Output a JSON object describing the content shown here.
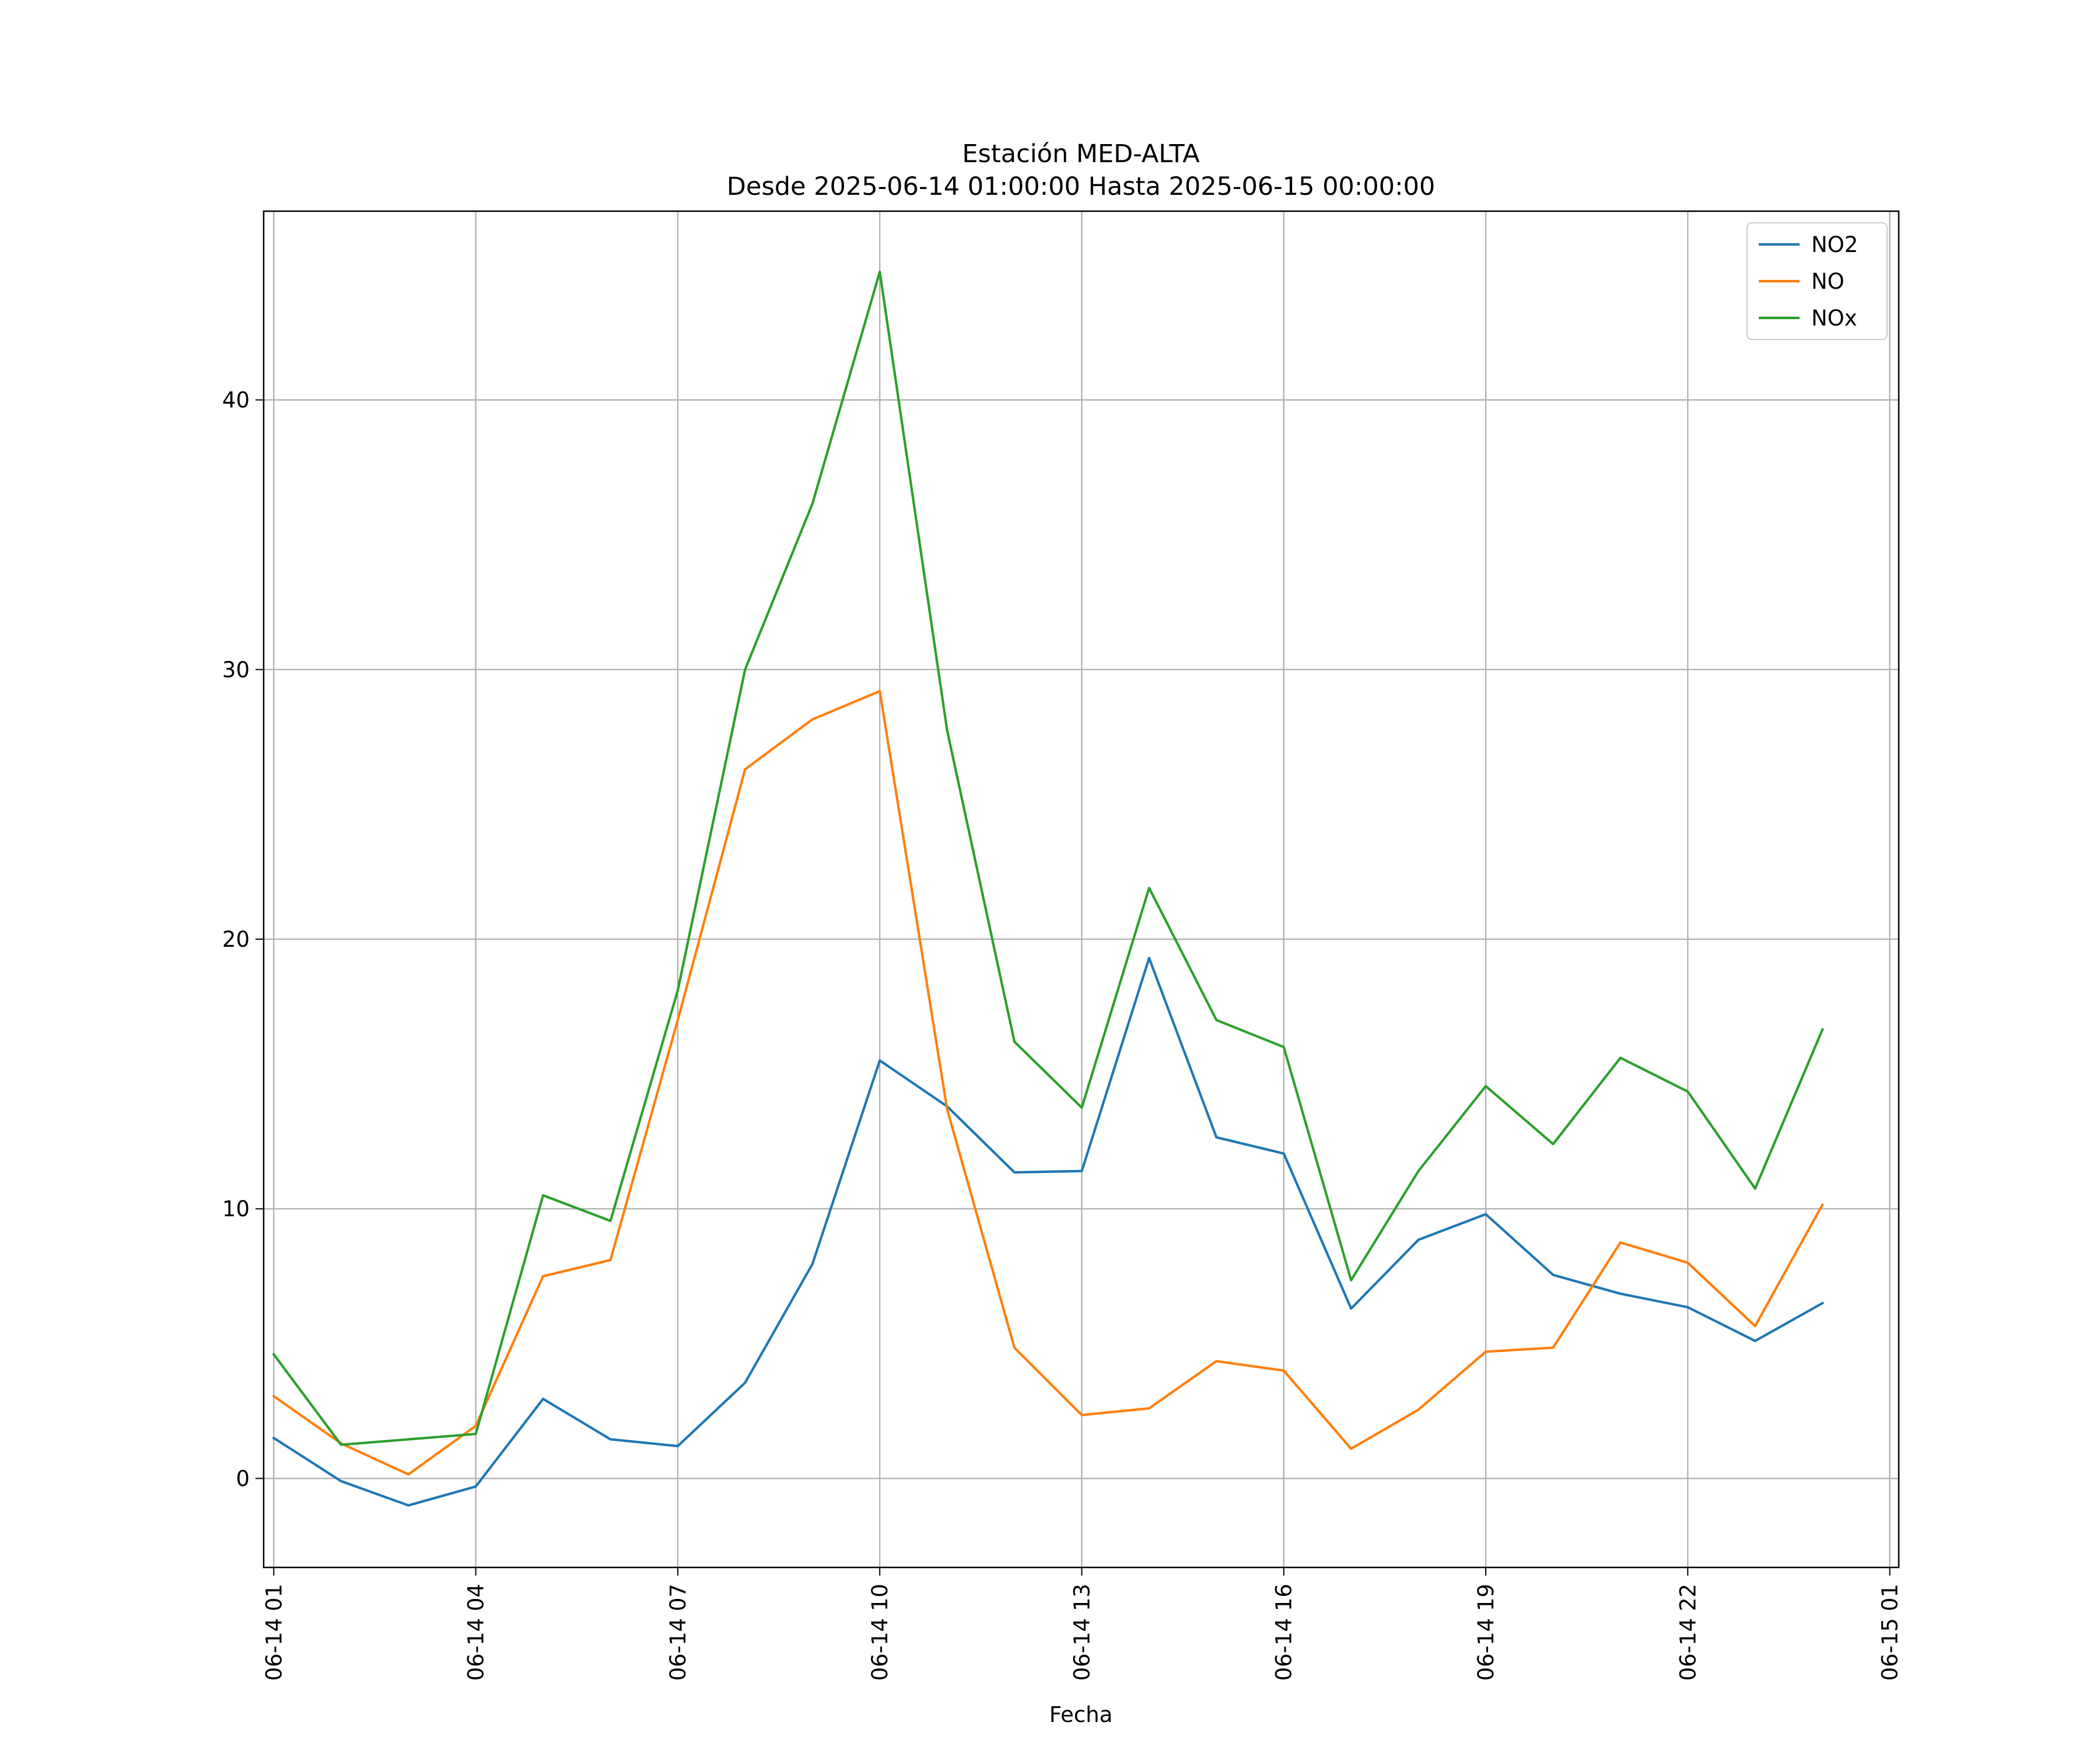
{
  "chart_data": {
    "type": "line",
    "title": "Estación MED-ALTA",
    "subtitle": "Desde 2025-06-14 01:00:00 Hasta 2025-06-15 00:00:00",
    "xlabel": "Fecha",
    "ylabel": "",
    "x": [
      "2025-06-14 01:00",
      "2025-06-14 02:00",
      "2025-06-14 03:00",
      "2025-06-14 04:00",
      "2025-06-14 05:00",
      "2025-06-14 06:00",
      "2025-06-14 07:00",
      "2025-06-14 08:00",
      "2025-06-14 09:00",
      "2025-06-14 10:00",
      "2025-06-14 11:00",
      "2025-06-14 12:00",
      "2025-06-14 13:00",
      "2025-06-14 14:00",
      "2025-06-14 15:00",
      "2025-06-14 16:00",
      "2025-06-14 17:00",
      "2025-06-14 18:00",
      "2025-06-14 19:00",
      "2025-06-14 20:00",
      "2025-06-14 21:00",
      "2025-06-14 22:00",
      "2025-06-14 23:00",
      "2025-06-15 00:00"
    ],
    "x_ticks": [
      "06-14 01",
      "06-14 04",
      "06-14 07",
      "06-14 10",
      "06-14 13",
      "06-14 16",
      "06-14 19",
      "06-14 22",
      "06-15 01"
    ],
    "y_ticks": [
      0,
      10,
      20,
      30,
      40
    ],
    "ylim": [
      -3.3,
      47.0
    ],
    "xlim": [
      "2025-06-14 00:51",
      "2025-06-15 01:08"
    ],
    "grid": true,
    "legend": "top-right",
    "series": [
      {
        "name": "NO2",
        "color": "#1f77b4",
        "values": [
          1.5,
          -0.1,
          -1.0,
          -0.3,
          2.95,
          1.45,
          1.2,
          3.55,
          7.95,
          15.5,
          13.8,
          11.35,
          11.4,
          19.3,
          12.65,
          12.05,
          6.3,
          8.85,
          9.8,
          7.55,
          6.85,
          6.35,
          5.1,
          6.5
        ]
      },
      {
        "name": "NO",
        "color": "#ff7f0e",
        "values": [
          3.05,
          1.3,
          0.15,
          1.95,
          7.5,
          8.1,
          17.0,
          26.3,
          28.15,
          29.2,
          13.7,
          4.85,
          2.35,
          2.6,
          4.35,
          4.0,
          1.1,
          2.55,
          4.7,
          4.85,
          8.75,
          8.0,
          5.65,
          10.15
        ]
      },
      {
        "name": "NOx",
        "color": "#2ca02c",
        "values": [
          4.6,
          1.25,
          null,
          1.65,
          10.5,
          9.55,
          18.1,
          30.0,
          36.15,
          44.75,
          27.75,
          16.2,
          13.75,
          21.9,
          17.0,
          16.0,
          7.35,
          11.4,
          14.55,
          12.4,
          15.6,
          14.35,
          10.75,
          16.65
        ]
      }
    ]
  }
}
